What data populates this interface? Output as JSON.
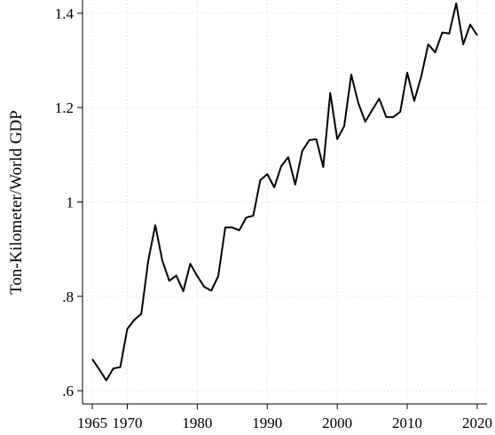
{
  "chart_data": {
    "type": "line",
    "y_label": "Ton-Kilometer/World GDP",
    "x": [
      1965,
      1966,
      1967,
      1968,
      1969,
      1970,
      1971,
      1972,
      1973,
      1974,
      1975,
      1976,
      1977,
      1978,
      1979,
      1980,
      1981,
      1982,
      1983,
      1984,
      1985,
      1986,
      1987,
      1988,
      1989,
      1990,
      1991,
      1992,
      1993,
      1994,
      1995,
      1996,
      1997,
      1998,
      1999,
      2000,
      2001,
      2002,
      2003,
      2004,
      2005,
      2006,
      2007,
      2008,
      2009,
      2010,
      2011,
      2012,
      2013,
      2014,
      2015,
      2016,
      2017,
      2018,
      2019,
      2020
    ],
    "series": [
      {
        "color": "#000000",
        "values": [
          0.667,
          0.645,
          0.622,
          0.647,
          0.65,
          0.731,
          0.75,
          0.763,
          0.876,
          0.951,
          0.876,
          0.833,
          0.844,
          0.811,
          0.869,
          0.843,
          0.82,
          0.812,
          0.843,
          0.946,
          0.946,
          0.94,
          0.967,
          0.971,
          1.046,
          1.059,
          1.031,
          1.076,
          1.095,
          1.037,
          1.108,
          1.131,
          1.133,
          1.074,
          1.231,
          1.133,
          1.161,
          1.27,
          1.21,
          1.17,
          1.195,
          1.219,
          1.18,
          1.18,
          1.191,
          1.274,
          1.214,
          1.266,
          1.334,
          1.317,
          1.359,
          1.357,
          1.421,
          1.334,
          1.376,
          1.353
        ]
      }
    ],
    "xlim": [
      1963.6,
      2021.4
    ],
    "xticks": [
      1965,
      1970,
      1980,
      1990,
      2000,
      2010,
      2020
    ],
    "ylim": [
      0.572,
      1.428
    ],
    "yticks": [
      {
        "value": 0.6,
        "label": ".6"
      },
      {
        "value": 0.8,
        "label": ".8"
      },
      1,
      1.2,
      1.4
    ],
    "grid": true
  }
}
